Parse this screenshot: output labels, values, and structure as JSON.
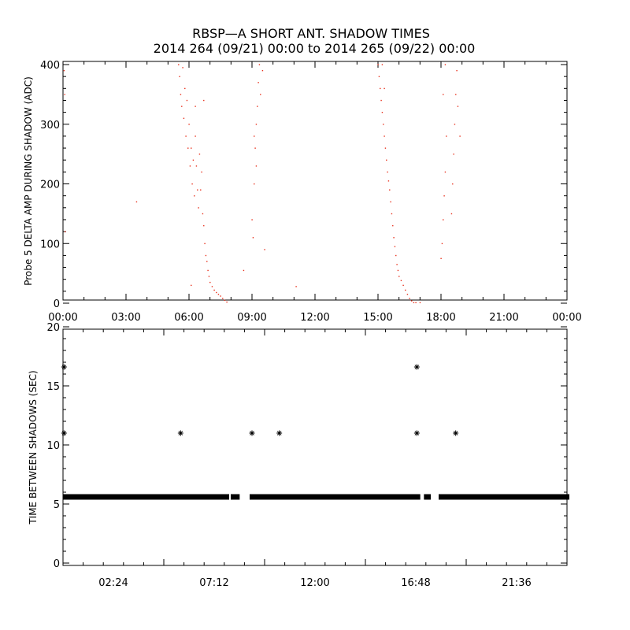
{
  "title_line1": "RBSP—A SHORT ANT. SHADOW TIMES",
  "title_line2": "2014 264 (09/21) 00:00 to 2014 265 (09/22) 00:00",
  "chart_data": [
    {
      "type": "scatter",
      "ylabel": "Probe 5 DELTA AMP DURING SHADOW (ADC)",
      "xlabel": "",
      "x_unit": "hours",
      "xlim": [
        0,
        24
      ],
      "ylim": [
        0,
        400
      ],
      "x_tick_labels": [
        "00:00",
        "03:00",
        "06:00",
        "09:00",
        "12:00",
        "15:00",
        "18:00",
        "21:00",
        "00:00"
      ],
      "y_tick_labels": [
        "0",
        "100",
        "200",
        "300",
        "400"
      ],
      "series": [
        {
          "color": "#e8301c",
          "points": [
            [
              0.05,
              390
            ],
            [
              0.08,
              350
            ],
            [
              0.1,
              120
            ],
            [
              3.5,
              170
            ],
            [
              5.5,
              400
            ],
            [
              5.55,
              380
            ],
            [
              5.6,
              350
            ],
            [
              5.65,
              330
            ],
            [
              5.7,
              395
            ],
            [
              5.75,
              310
            ],
            [
              5.8,
              360
            ],
            [
              5.85,
              280
            ],
            [
              5.9,
              340
            ],
            [
              5.95,
              260
            ],
            [
              6.0,
              300
            ],
            [
              6.05,
              230
            ],
            [
              6.1,
              260
            ],
            [
              6.15,
              200
            ],
            [
              6.2,
              240
            ],
            [
              6.25,
              180
            ],
            [
              6.3,
              280
            ],
            [
              6.35,
              230
            ],
            [
              6.4,
              190
            ],
            [
              6.45,
              160
            ],
            [
              6.5,
              250
            ],
            [
              6.55,
              190
            ],
            [
              6.6,
              220
            ],
            [
              6.65,
              150
            ],
            [
              6.7,
              130
            ],
            [
              6.75,
              100
            ],
            [
              6.8,
              80
            ],
            [
              6.85,
              70
            ],
            [
              6.9,
              55
            ],
            [
              6.95,
              45
            ],
            [
              7.0,
              35
            ],
            [
              7.1,
              28
            ],
            [
              7.2,
              22
            ],
            [
              7.3,
              18
            ],
            [
              7.4,
              15
            ],
            [
              7.5,
              12
            ],
            [
              7.6,
              8
            ],
            [
              7.7,
              5
            ],
            [
              7.8,
              2
            ],
            [
              6.1,
              30
            ],
            [
              6.3,
              330
            ],
            [
              6.7,
              340
            ],
            [
              9.0,
              140
            ],
            [
              9.05,
              110
            ],
            [
              9.1,
              200
            ],
            [
              9.15,
              260
            ],
            [
              9.2,
              300
            ],
            [
              9.25,
              330
            ],
            [
              9.3,
              370
            ],
            [
              9.35,
              400
            ],
            [
              9.4,
              350
            ],
            [
              9.5,
              390
            ],
            [
              9.2,
              230
            ],
            [
              9.1,
              280
            ],
            [
              9.6,
              90
            ],
            [
              11.1,
              28
            ],
            [
              8.6,
              55
            ],
            [
              15.0,
              400
            ],
            [
              15.05,
              380
            ],
            [
              15.1,
              360
            ],
            [
              15.15,
              340
            ],
            [
              15.2,
              320
            ],
            [
              15.25,
              300
            ],
            [
              15.3,
              280
            ],
            [
              15.35,
              260
            ],
            [
              15.4,
              240
            ],
            [
              15.45,
              220
            ],
            [
              15.5,
              205
            ],
            [
              15.55,
              190
            ],
            [
              15.6,
              170
            ],
            [
              15.65,
              150
            ],
            [
              15.7,
              130
            ],
            [
              15.75,
              110
            ],
            [
              15.8,
              95
            ],
            [
              15.85,
              80
            ],
            [
              15.9,
              65
            ],
            [
              15.95,
              55
            ],
            [
              16.0,
              45
            ],
            [
              16.1,
              38
            ],
            [
              16.2,
              30
            ],
            [
              16.3,
              22
            ],
            [
              16.4,
              15
            ],
            [
              16.5,
              8
            ],
            [
              16.6,
              4
            ],
            [
              16.7,
              1
            ],
            [
              15.2,
              400
            ],
            [
              15.3,
              360
            ],
            [
              16.8,
              1
            ],
            [
              17.0,
              1
            ],
            [
              18.0,
              75
            ],
            [
              18.05,
              100
            ],
            [
              18.1,
              140
            ],
            [
              18.15,
              180
            ],
            [
              18.2,
              220
            ],
            [
              18.25,
              280
            ],
            [
              18.1,
              350
            ],
            [
              18.2,
              400
            ],
            [
              18.5,
              150
            ],
            [
              18.55,
              200
            ],
            [
              18.6,
              250
            ],
            [
              18.65,
              300
            ],
            [
              18.7,
              350
            ],
            [
              18.75,
              390
            ],
            [
              18.8,
              330
            ],
            [
              18.9,
              280
            ]
          ]
        }
      ]
    },
    {
      "type": "scatter",
      "ylabel": "TIME BETWEEN SHADOWS (SEC)",
      "xlabel": "",
      "x_unit": "hours",
      "xlim": [
        0,
        24
      ],
      "ylim": [
        0,
        20
      ],
      "x_tick_labels": [
        "02:24",
        "07:12",
        "12:00",
        "16:48",
        "21:36"
      ],
      "y_tick_labels": [
        "0",
        "5",
        "10",
        "15",
        "20"
      ],
      "series": [
        {
          "color": "#000000",
          "dense_runs": [
            {
              "x_start": 0.1,
              "x_end": 7.8,
              "y": 5.6
            },
            {
              "x_start": 8.1,
              "x_end": 8.3,
              "y": 5.6
            },
            {
              "x_start": 9.0,
              "x_end": 16.9,
              "y": 5.6
            },
            {
              "x_start": 17.3,
              "x_end": 17.4,
              "y": 5.6
            },
            {
              "x_start": 18.0,
              "x_end": 24.0,
              "y": 5.6
            }
          ],
          "points": [
            [
              0.05,
              16.6
            ],
            [
              0.05,
              11.0
            ],
            [
              5.6,
              11.0
            ],
            [
              9.0,
              11.0
            ],
            [
              10.3,
              11.0
            ],
            [
              16.85,
              16.6
            ],
            [
              16.85,
              11.0
            ],
            [
              18.7,
              11.0
            ]
          ]
        }
      ]
    }
  ]
}
